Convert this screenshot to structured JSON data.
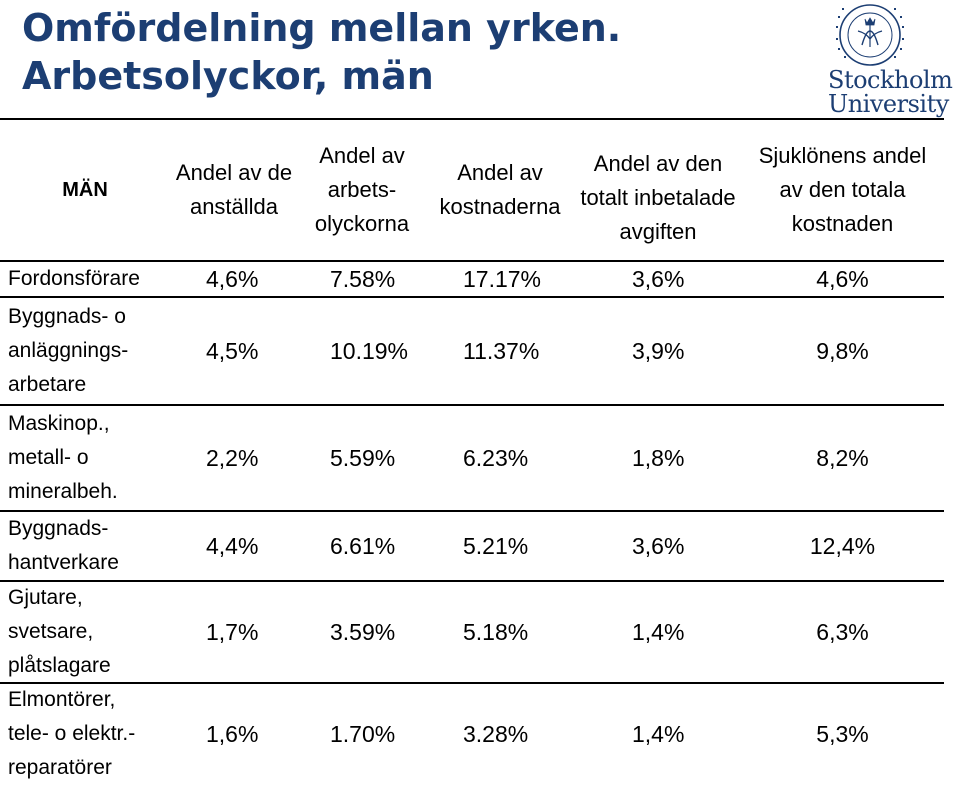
{
  "title_line1": "Omfördelning mellan yrken.",
  "title_line2": "Arbetsolyckor, män",
  "logo": {
    "wordmark_line1": "Stockholm",
    "wordmark_line2": "University",
    "seal_text": "STOCKHOLMS UNIVERSITET",
    "color": "#1c3e73"
  },
  "table": {
    "row_header": "MÄN",
    "columns": [
      "Andel av de anställda",
      "Andel av arbets-olyckorna",
      "Andel av kostnaderna",
      "Andel av den totalt inbetalade avgiften",
      "Sjuklönens andel av den totala kostnaden"
    ],
    "rows": [
      {
        "label": "Fordonsförare",
        "values": [
          "4,6%",
          "7.58%",
          "17.17%",
          "3,6%",
          "4,6%"
        ]
      },
      {
        "label": "Byggnads- o anläggnings-arbetare",
        "values": [
          "4,5%",
          "10.19%",
          "11.37%",
          "3,9%",
          "9,8%"
        ]
      },
      {
        "label": "Maskinop., metall- o mineralbeh.",
        "values": [
          "2,2%",
          "5.59%",
          "6.23%",
          "1,8%",
          "8,2%"
        ]
      },
      {
        "label": "Byggnads-hantverkare",
        "values": [
          "4,4%",
          "6.61%",
          "5.21%",
          "3,6%",
          "12,4%"
        ]
      },
      {
        "label": "Gjutare, svetsare, plåtslagare",
        "values": [
          "1,7%",
          "3.59%",
          "5.18%",
          "1,4%",
          "6,3%"
        ]
      },
      {
        "label": "Elmontörer, tele- o elektr.-reparatörer",
        "values": [
          "1,6%",
          "1.70%",
          "3.28%",
          "1,4%",
          "5,3%"
        ]
      }
    ]
  }
}
